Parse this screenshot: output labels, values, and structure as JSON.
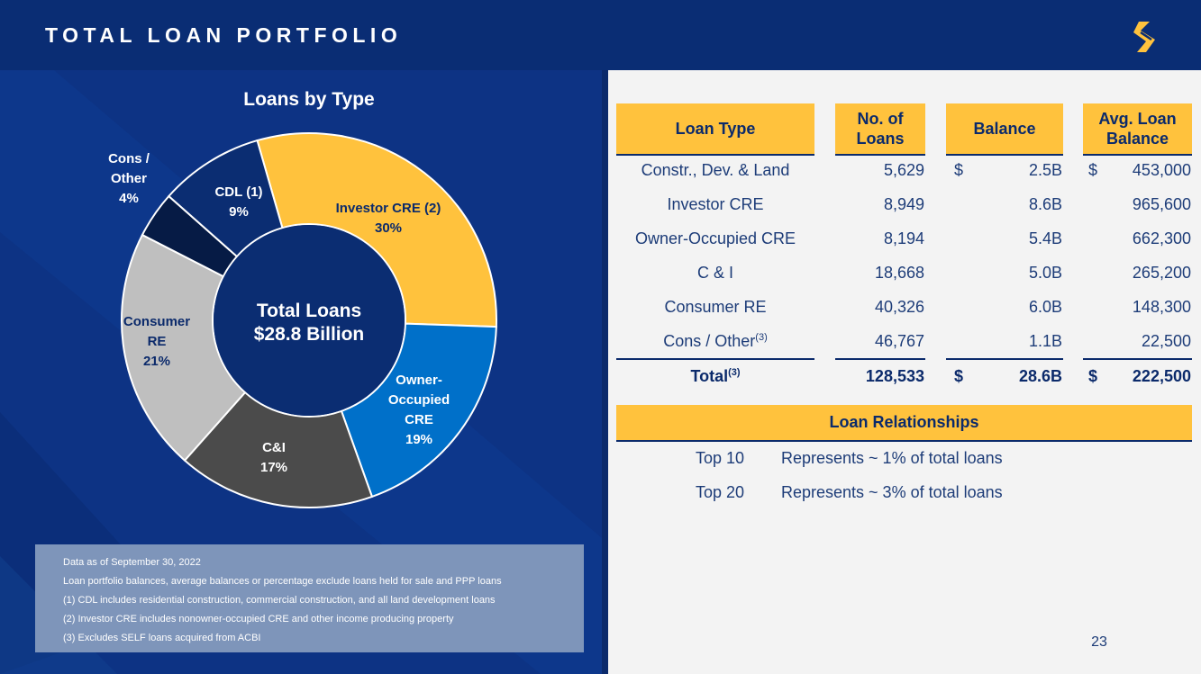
{
  "header": {
    "title": "TOTAL LOAN PORTFOLIO",
    "logo_icon": "s-logo-icon",
    "logo_color": "#ffc23d"
  },
  "chart_data": {
    "type": "pie",
    "title": "Loans by Type",
    "center_label": [
      "Total Loans",
      "$28.8 Billion"
    ],
    "slices": [
      {
        "label": [
          "Investor CRE (2)"
        ],
        "value": 30,
        "pct_label": "30%",
        "color": "#ffc23d",
        "text_color": "#0b2a6b"
      },
      {
        "label": [
          "Owner-",
          "Occupied",
          "CRE"
        ],
        "value": 19,
        "pct_label": "19%",
        "color": "#0070c9",
        "text_color": "#ffffff"
      },
      {
        "label": [
          "C&I"
        ],
        "value": 17,
        "pct_label": "17%",
        "color": "#4b4b4b",
        "text_color": "#ffffff"
      },
      {
        "label": [
          "Consumer",
          "RE"
        ],
        "value": 21,
        "pct_label": "21%",
        "color": "#bfbfbf",
        "text_color": "#0b2a6b"
      },
      {
        "label": [
          "Cons /",
          "Other"
        ],
        "value": 4,
        "pct_label": "4%",
        "color": "#061b45",
        "text_color": "#ffffff"
      },
      {
        "label": [
          "CDL (1)"
        ],
        "value": 9,
        "pct_label": "9%",
        "color": "#0b2d72",
        "text_color": "#ffffff"
      }
    ]
  },
  "footnotes": [
    "Data as of September 30, 2022",
    "Loan portfolio balances, average balances or percentage exclude loans held for sale and PPP loans",
    "(1)  CDL includes residential construction, commercial construction, and all land development loans",
    "(2)  Investor CRE includes nonowner-occupied CRE and other income producing property",
    "(3)  Excludes SELF loans acquired from ACBI"
  ],
  "table": {
    "headers": {
      "type": "Loan Type",
      "num_line1": "No. of",
      "num_line2": "Loans",
      "balance": "Balance",
      "avg_line1": "Avg. Loan",
      "avg_line2": "Balance"
    },
    "currency_symbol": "$",
    "rows": [
      {
        "type": "Constr., Dev. & Land",
        "num": "5,629",
        "balance": "2.5B",
        "avg": "453,000",
        "show_dollar": true
      },
      {
        "type": "Investor CRE",
        "num": "8,949",
        "balance": "8.6B",
        "avg": "965,600"
      },
      {
        "type": "Owner-Occupied CRE",
        "num": "8,194",
        "balance": "5.4B",
        "avg": "662,300"
      },
      {
        "type": "C & I",
        "num": "18,668",
        "balance": "5.0B",
        "avg": "265,200"
      },
      {
        "type": "Consumer RE",
        "num": "40,326",
        "balance": "6.0B",
        "avg": "148,300"
      },
      {
        "type": "Cons / Other",
        "type_sup": "(3)",
        "num": "46,767",
        "balance": "1.1B",
        "avg": "22,500"
      }
    ],
    "total": {
      "type": "Total",
      "type_sup": "(3)",
      "num": "128,533",
      "balance": "28.6B",
      "avg": "222,500"
    }
  },
  "relationships": {
    "header": "Loan Relationships",
    "rows": [
      {
        "label": "Top 10",
        "text": "Represents ~ 1% of total loans"
      },
      {
        "label": "Top 20",
        "text": "Represents ~ 3% of total loans"
      }
    ]
  },
  "page_number": "23"
}
